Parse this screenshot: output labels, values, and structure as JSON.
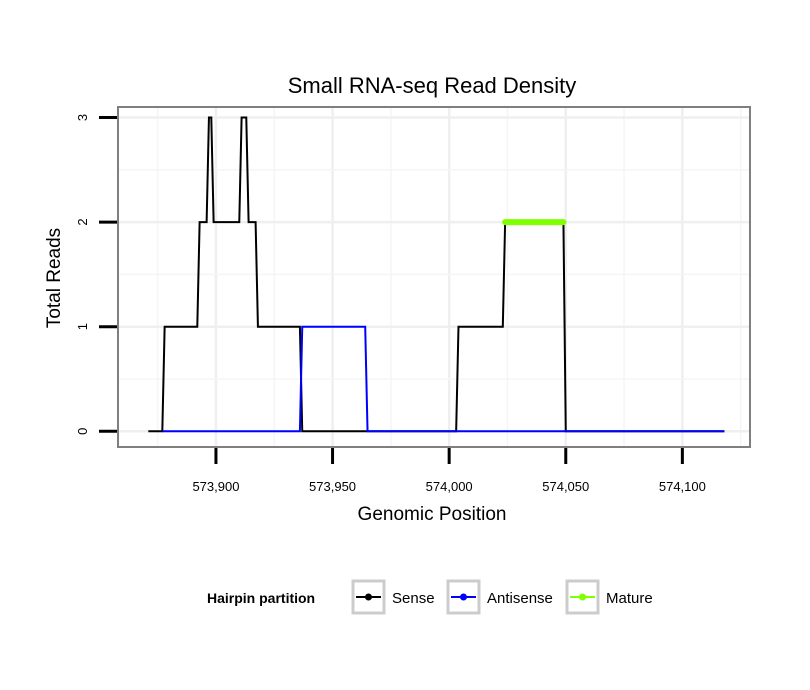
{
  "chart_data": {
    "type": "line",
    "title": "Small RNA-seq Read Density",
    "xlabel": "Genomic Position",
    "ylabel": "Total Reads",
    "xlim": [
      573858,
      574129
    ],
    "ylim": [
      -0.15,
      3.1
    ],
    "x_ticks": [
      573900,
      573950,
      574000,
      574050,
      574100
    ],
    "x_tick_labels": [
      "573,900",
      "573,950",
      "574,000",
      "574,050",
      "574,100"
    ],
    "y_ticks": [
      0,
      1,
      2,
      3
    ],
    "y_tick_labels": [
      "0",
      "1",
      "2",
      "3"
    ],
    "grid": true,
    "legend": {
      "title": "Hairpin partition",
      "position": "bottom",
      "entries": [
        "Sense",
        "Antisense",
        "Mature"
      ]
    },
    "series": [
      {
        "name": "Sense",
        "color": "#000000",
        "x": [
          573871,
          573877,
          573878,
          573892,
          573893,
          573896,
          573897,
          573898,
          573899,
          573910,
          573911,
          573912,
          573913,
          573914,
          573917,
          573918,
          573936,
          573937,
          574003,
          574004,
          574023,
          574024,
          574049,
          574050,
          574118
        ],
        "y": [
          0,
          0,
          1,
          1,
          2,
          2,
          3,
          3,
          2,
          2,
          3,
          3,
          3,
          2,
          2,
          1,
          1,
          0,
          0,
          1,
          1,
          2,
          2,
          0,
          0
        ]
      },
      {
        "name": "Antisense",
        "color": "#0000ff",
        "x": [
          573877,
          573936,
          573937,
          573964,
          573965,
          574118
        ],
        "y": [
          0,
          0,
          1,
          1,
          0,
          0
        ]
      },
      {
        "name": "Mature",
        "color": "#7fff00",
        "x": [
          574024,
          574049
        ],
        "y": [
          2,
          2
        ]
      }
    ]
  }
}
